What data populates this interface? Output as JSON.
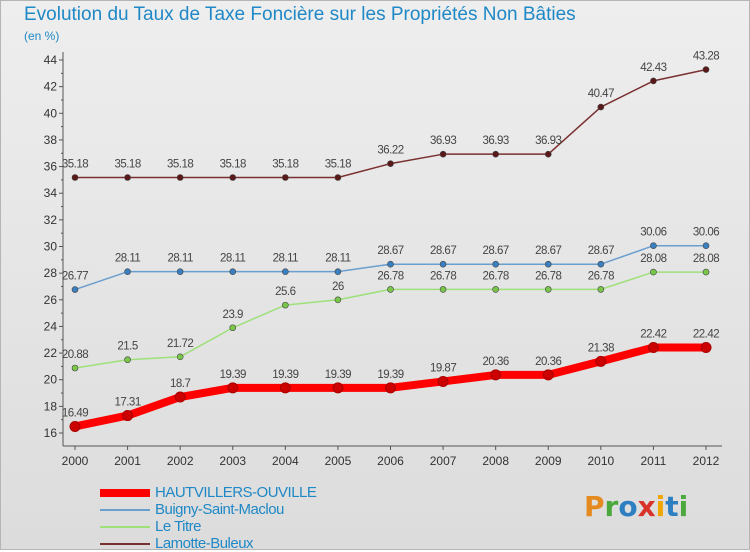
{
  "header": {
    "title": "Evolution du Taux de Taxe Foncière sur les Propriétés Non Bâties",
    "subtitle": "(en %)"
  },
  "logo": {
    "text": "Proxiti",
    "colors": [
      "#e58a1f",
      "#4aa83c",
      "#2e7fc2",
      "#d8322a",
      "#f0a500",
      "#2e7fc2",
      "#4aa83c"
    ]
  },
  "chart_data": {
    "type": "line",
    "title": "Evolution du Taux de Taxe Foncière sur les Propriétés Non Bâties",
    "subtitle": "(en %)",
    "x": [
      "2000",
      "2001",
      "2002",
      "2003",
      "2004",
      "2005",
      "2006",
      "2007",
      "2008",
      "2009",
      "2010",
      "2011",
      "2012"
    ],
    "ylim": [
      16,
      44
    ],
    "yticks": [
      16,
      18,
      20,
      22,
      24,
      26,
      28,
      30,
      32,
      34,
      36,
      38,
      40,
      42,
      44
    ],
    "grid": false,
    "legend_position": "bottom-left",
    "series": [
      {
        "name": "HAUTVILLERS-OUVILLE",
        "color": "#ff0000",
        "marker": "#cc0000",
        "thick": true,
        "values": [
          16.49,
          17.31,
          18.7,
          19.39,
          19.39,
          19.39,
          19.39,
          19.87,
          20.36,
          20.36,
          21.38,
          22.42,
          22.42
        ],
        "labels": [
          "16.49",
          "17.31",
          "18.7",
          "19.39",
          "19.39",
          "19.39",
          "19.39",
          "19.87",
          "20.36",
          "20.36",
          "21.38",
          "22.42",
          "22.42"
        ]
      },
      {
        "name": "Buigny-Saint-Maclou",
        "color": "#6a9ecf",
        "marker": "#3a7fc0",
        "thick": false,
        "values": [
          26.77,
          28.11,
          28.11,
          28.11,
          28.11,
          28.11,
          28.67,
          28.67,
          28.67,
          28.67,
          28.67,
          30.06,
          30.06
        ],
        "labels": [
          "26.77",
          "28.11",
          "28.11",
          "28.11",
          "28.11",
          "28.11",
          "28.67",
          "28.67",
          "28.67",
          "28.67",
          "28.67",
          "30.06",
          "30.06"
        ]
      },
      {
        "name": "Le Titre",
        "color": "#9ee07a",
        "marker": "#7ac64a",
        "thick": false,
        "values": [
          20.88,
          21.5,
          21.72,
          23.9,
          25.6,
          26,
          26.78,
          26.78,
          26.78,
          26.78,
          26.78,
          28.08,
          28.08
        ],
        "labels": [
          "20.88",
          "21.5",
          "21.72",
          "23.9",
          "25.6",
          "26",
          "26.78",
          "26.78",
          "26.78",
          "26.78",
          "26.78",
          "28.08",
          "28.08"
        ]
      },
      {
        "name": "Lamotte-Buleux",
        "color": "#7a3030",
        "marker": "#5a1818",
        "thick": false,
        "values": [
          35.18,
          35.18,
          35.18,
          35.18,
          35.18,
          35.18,
          36.22,
          36.93,
          36.93,
          36.93,
          40.47,
          42.43,
          43.28
        ],
        "labels": [
          "35.18",
          "35.18",
          "35.18",
          "35.18",
          "35.18",
          "35.18",
          "36.22",
          "36.93",
          "36.93",
          "36.93",
          "40.47",
          "42.43",
          "43.28"
        ]
      }
    ]
  }
}
